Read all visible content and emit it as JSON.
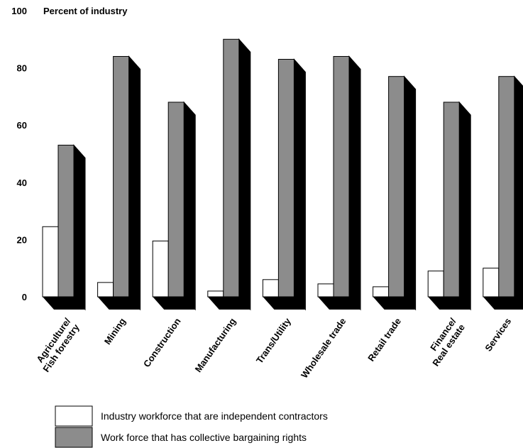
{
  "chart_data": {
    "type": "bar",
    "ylabel": "Percent of industry",
    "ylim": [
      0,
      100
    ],
    "yticks": [
      "0",
      "20",
      "40",
      "60",
      "80",
      "100"
    ],
    "categories": [
      "Agriculture/\nFish forestry",
      "Mining",
      "Construction",
      "Manufacturing",
      "Trans/Utility",
      "Wholesale trade",
      "Retail trade",
      "Finance/\nReal estate",
      "Services"
    ],
    "series": [
      {
        "name": "Industry workforce that are independent contractors",
        "color": "#ffffff",
        "values": [
          24.5,
          5,
          19.5,
          2,
          6,
          4.5,
          3.5,
          9,
          10
        ]
      },
      {
        "name": "Work force that has collective bargaining rights",
        "color": "#8c8c8c",
        "values": [
          53,
          84,
          68,
          90,
          83,
          84,
          77,
          68,
          77
        ]
      }
    ],
    "grid": false,
    "legend_position": "bottom",
    "three_d": true
  }
}
